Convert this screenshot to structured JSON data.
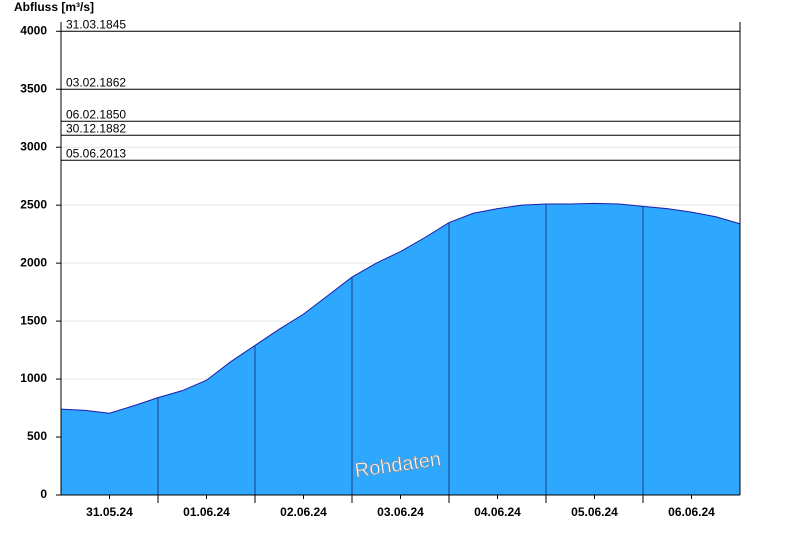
{
  "chart_data": {
    "type": "area",
    "ylabel": "Abfluss [m³/s]",
    "watermark": "Rohdaten",
    "color": "#2ea8ff",
    "line_color": "#1c1ca8",
    "x": [
      0,
      0.25,
      0.5,
      0.75,
      1,
      1.25,
      1.5,
      1.75,
      2,
      2.25,
      2.5,
      2.75,
      3,
      3.25,
      3.5,
      3.75,
      4,
      4.25,
      4.5,
      4.75,
      5,
      5.25,
      5.5,
      5.75,
      6,
      6.25,
      6.5,
      6.75,
      7
    ],
    "values": [
      741,
      730,
      705,
      770,
      840,
      900,
      990,
      1150,
      1290,
      1430,
      1560,
      1720,
      1880,
      2000,
      2100,
      2220,
      2350,
      2430,
      2470,
      2500,
      2510,
      2510,
      2515,
      2510,
      2490,
      2470,
      2440,
      2400,
      2340
    ],
    "xlim": [
      0,
      7
    ],
    "xticks": [
      {
        "value": 0.5,
        "label": "31.05.24"
      },
      {
        "value": 1.5,
        "label": "01.06.24"
      },
      {
        "value": 2.5,
        "label": "02.06.24"
      },
      {
        "value": 3.5,
        "label": "03.06.24"
      },
      {
        "value": 4.5,
        "label": "04.06.24"
      },
      {
        "value": 5.5,
        "label": "05.06.24"
      },
      {
        "value": 6.5,
        "label": "06.06.24"
      }
    ],
    "day_boundaries": [
      1,
      2,
      3,
      4,
      5,
      6
    ],
    "ylim": [
      0,
      4080
    ],
    "yticks": [
      0,
      500,
      1000,
      1500,
      2000,
      2500,
      3000,
      3500,
      4000
    ],
    "grid": true,
    "reference_lines": [
      {
        "value": 4000,
        "label": "31.03.1845"
      },
      {
        "value": 3500,
        "label": "03.02.1862"
      },
      {
        "value": 3224,
        "label": "06.02.1850"
      },
      {
        "value": 3103,
        "label": "30.12.1882"
      },
      {
        "value": 2888,
        "label": "05.06.2013"
      }
    ]
  }
}
